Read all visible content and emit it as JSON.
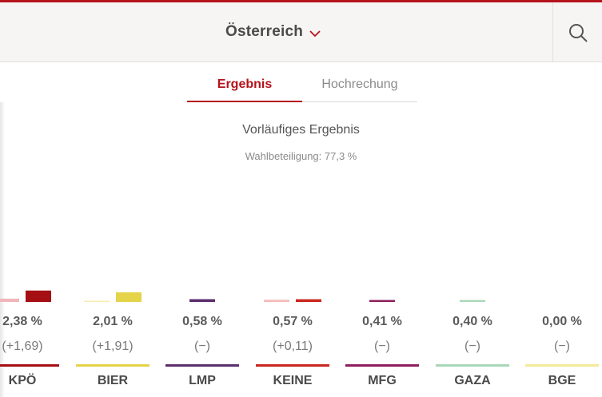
{
  "header": {
    "region": "Österreich"
  },
  "tabs": [
    {
      "label": "Ergebnis",
      "active": true
    },
    {
      "label": "Hochrechung",
      "active": false
    }
  ],
  "result": {
    "title": "Vorläufiges Ergebnis",
    "turnout": "Wahlbeteiligung: 77,3 %"
  },
  "chart_data": {
    "type": "bar",
    "categories": [
      "KPÖ",
      "BIER",
      "LMP",
      "KEINE",
      "MFG",
      "GAZA",
      "BGE"
    ],
    "series": [
      {
        "values": [
          0.69,
          0.1,
          null,
          0.46,
          null,
          null,
          null
        ]
      },
      {
        "values": [
          2.38,
          2.01,
          0.58,
          0.57,
          0.41,
          0.4,
          0.0
        ]
      }
    ],
    "ylim": [
      0,
      50
    ]
  },
  "parties": [
    {
      "name": "KPÖ",
      "percent": "2,38 %",
      "change": "(+1,69)",
      "color": "#a50f14",
      "prev_color": "#f0b7bb"
    },
    {
      "name": "BIER",
      "percent": "2,01 %",
      "change": "(+1,91)",
      "color": "#e5d34a",
      "prev_color": "#f5ecb0"
    },
    {
      "name": "LMP",
      "percent": "0,58 %",
      "change": "(−)",
      "color": "#5b2e6e",
      "prev_color": "#c5b0cf"
    },
    {
      "name": "KEINE",
      "percent": "0,57 %",
      "change": "(+0,11)",
      "color": "#c9261f",
      "prev_color": "#f3bcb9"
    },
    {
      "name": "MFG",
      "percent": "0,41 %",
      "change": "(−)",
      "color": "#8e1f5e",
      "prev_color": "#dcb6cb"
    },
    {
      "name": "GAZA",
      "percent": "0,40 %",
      "change": "(−)",
      "color": "#a8d8b9",
      "prev_color": "#dcefe2"
    },
    {
      "name": "BGE",
      "percent": "0,00 %",
      "change": "(−)",
      "color": "#f3ea9a",
      "prev_color": "#faf5d1"
    }
  ]
}
